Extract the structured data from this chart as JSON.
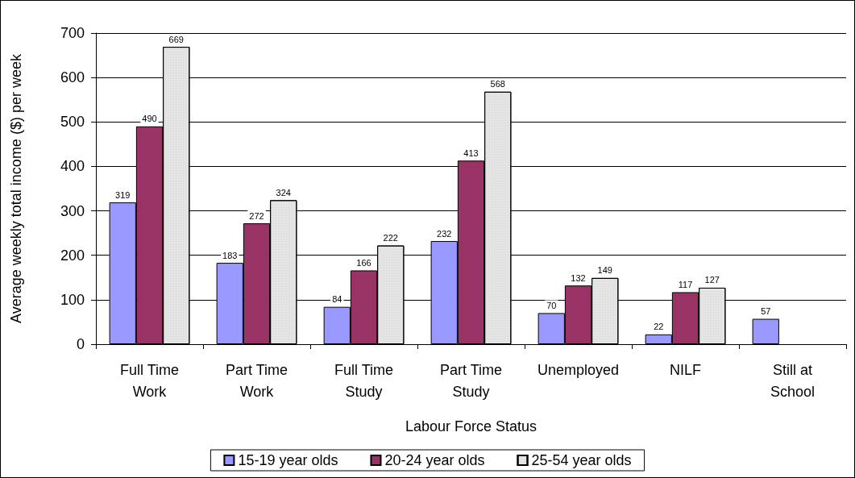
{
  "chart_data": {
    "type": "bar",
    "xlabel": "Labour Force Status",
    "ylabel": "Average weekly total income ($) per week",
    "categories": [
      "Full Time\nWork",
      "Part Time\nWork",
      "Full Time\nStudy",
      "Part Time\nStudy",
      "Unemployed",
      "NILF",
      "Still at\nSchool"
    ],
    "series": [
      {
        "name": "15-19 year olds",
        "color": "#9999ff",
        "values": [
          319,
          183,
          84,
          232,
          70,
          22,
          57
        ]
      },
      {
        "name": "20-24 year olds",
        "color": "#993366",
        "values": [
          490,
          272,
          166,
          413,
          132,
          117,
          null
        ]
      },
      {
        "name": "25-54 year olds",
        "color": "#e6e6e6",
        "values": [
          669,
          324,
          222,
          568,
          149,
          127,
          null
        ]
      }
    ],
    "ylim": [
      0,
      700
    ],
    "yticks": [
      0,
      100,
      200,
      300,
      400,
      500,
      600,
      700
    ],
    "grid": "y",
    "legend": "bottom",
    "data_labels": true
  }
}
